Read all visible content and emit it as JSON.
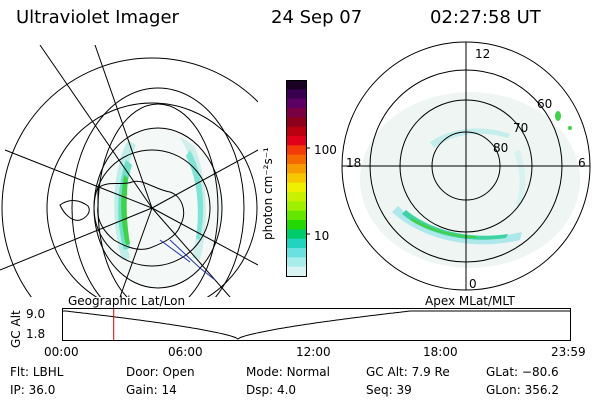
{
  "header": {
    "instrument": "Ultraviolet Imager",
    "date": "24 Sep 07",
    "time": "02:27:58 UT"
  },
  "panels": {
    "left_label": "Geographic Lat/Lon",
    "right_label": "Apex MLat/MLT"
  },
  "colorbar": {
    "unit_label": "photon cm⁻²s⁻¹",
    "ticks": [
      "100",
      "10"
    ],
    "colors": [
      "#1a0022",
      "#3a0050",
      "#5c0064",
      "#7a0044",
      "#8c001c",
      "#b80010",
      "#e0001a",
      "#f23a0a",
      "#f56a00",
      "#f79c00",
      "#f5c800",
      "#eef000",
      "#c8f000",
      "#9ef000",
      "#64e600",
      "#22d800",
      "#00cc6a",
      "#22d4c0",
      "#6ae0e0",
      "#a8ecec",
      "#d8f4f4"
    ]
  },
  "polar": {
    "mlt_labels": {
      "top": "12",
      "right": "6",
      "bottom": "0",
      "left": "18"
    },
    "mlat_labels": [
      "60",
      "70",
      "80"
    ]
  },
  "timeline": {
    "ylabel": "GC Alt",
    "yticks": [
      "9.0",
      "1.8"
    ],
    "xticks": [
      "00:00",
      "06:00",
      "12:00",
      "18:00",
      "23:59"
    ],
    "marker_time_fraction": 0.1
  },
  "footer": {
    "row1": [
      {
        "label": "Flt:",
        "value": "LBHL"
      },
      {
        "label": "Door:",
        "value": "Open"
      },
      {
        "label": "Mode:",
        "value": "Normal"
      },
      {
        "label": "GC Alt:",
        "value": "7.9 Re"
      },
      {
        "label": "GLat:",
        "value": "−80.6"
      }
    ],
    "row2": [
      {
        "label": "IP:",
        "value": "36.0"
      },
      {
        "label": "Gain:",
        "value": "14"
      },
      {
        "label": "Dsp:",
        "value": "4.0"
      },
      {
        "label": "Seq:",
        "value": "39"
      },
      {
        "label": "GLon:",
        "value": "356.2"
      }
    ]
  }
}
